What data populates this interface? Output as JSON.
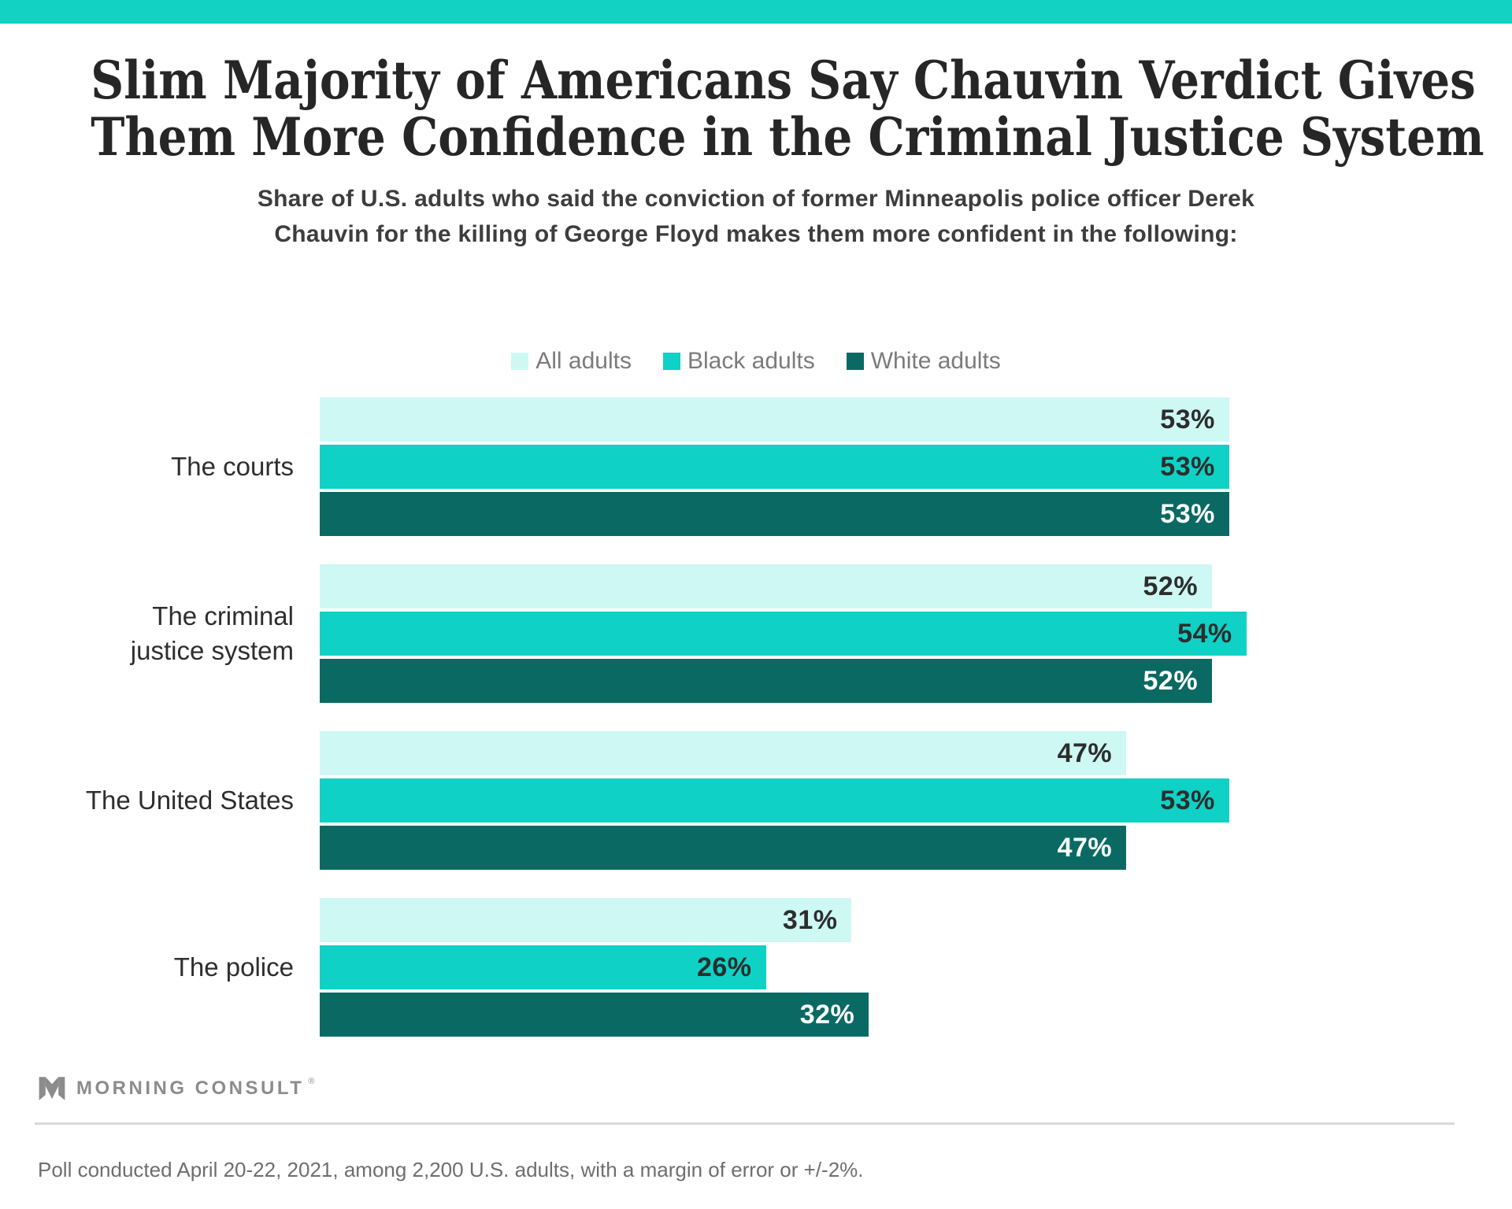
{
  "theme": {
    "accent_color": "#12d2c4"
  },
  "header": {
    "title_lines": [
      "Slim Majority of Americans Say Chauvin Verdict Gives",
      "Them More Confidence in the Criminal Justice System"
    ],
    "subtitle_lines": [
      "Share of U.S. adults who said the conviction of former Minneapolis police officer Derek",
      "Chauvin for the killing of George Floyd makes them more confident in the following:"
    ]
  },
  "chart_data": {
    "type": "bar",
    "orientation": "horizontal",
    "title": "Slim Majority of Americans Say Chauvin Verdict Gives Them More Confidence in the Criminal Justice System",
    "subtitle": "Share of U.S. adults who said the conviction of former Minneapolis police officer Derek Chauvin for the killing of George Floyd makes them more confident in the following:",
    "categories": [
      "The courts",
      "The criminal justice system",
      "The United States",
      "The police"
    ],
    "category_label_lines": [
      [
        "The courts"
      ],
      [
        "The criminal",
        "justice system"
      ],
      [
        "The United States"
      ],
      [
        "The police"
      ]
    ],
    "series": [
      {
        "name": "All adults",
        "color": "#cdf8f3",
        "value_label_color": "#2d2d2d",
        "values": [
          53,
          52,
          47,
          31
        ]
      },
      {
        "name": "Black adults",
        "color": "#0fd1c5",
        "value_label_color": "#2d2d2d",
        "values": [
          53,
          54,
          53,
          26
        ]
      },
      {
        "name": "White adults",
        "color": "#0a6a63",
        "value_label_color": "#ffffff",
        "values": [
          53,
          52,
          47,
          32
        ]
      }
    ],
    "value_suffix": "%",
    "value_range_pct": [
      0,
      100
    ],
    "grid": false,
    "value_axis_shown": false,
    "legend_position": "top-center",
    "value_labels": "inside-right"
  },
  "footer": {
    "logo_text": "MORNING CONSULT",
    "registered_mark": "®",
    "note": "Poll conducted April 20-22, 2021, among 2,200 U.S. adults, with a margin of error or +/-2%."
  }
}
